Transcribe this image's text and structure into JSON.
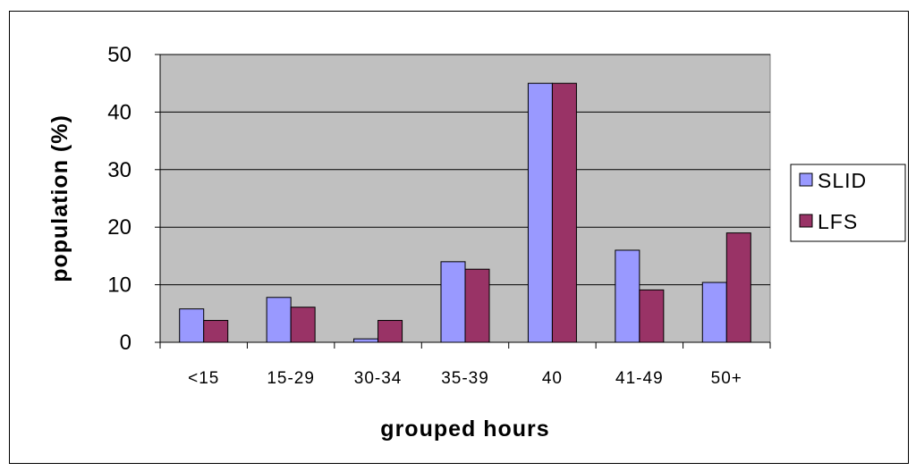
{
  "chart_data": {
    "type": "bar",
    "categories": [
      "<15",
      "15-29",
      "30-34",
      "35-39",
      "40",
      "41-49",
      "50+"
    ],
    "series": [
      {
        "name": "SLID",
        "values": [
          5.8,
          7.8,
          0.6,
          14.0,
          45.0,
          16.0,
          10.4
        ],
        "color": "#9999ff"
      },
      {
        "name": "LFS",
        "values": [
          3.8,
          6.1,
          3.8,
          12.7,
          45.0,
          9.1,
          19.0
        ],
        "color": "#993366"
      }
    ],
    "title": "",
    "xlabel": "grouped hours",
    "ylabel": "population (%)",
    "ylim": [
      0,
      50
    ],
    "yticks": [
      0,
      10,
      20,
      30,
      40,
      50
    ],
    "grid": true,
    "plot_background": "#c0c0c0",
    "legend_position": "right"
  }
}
